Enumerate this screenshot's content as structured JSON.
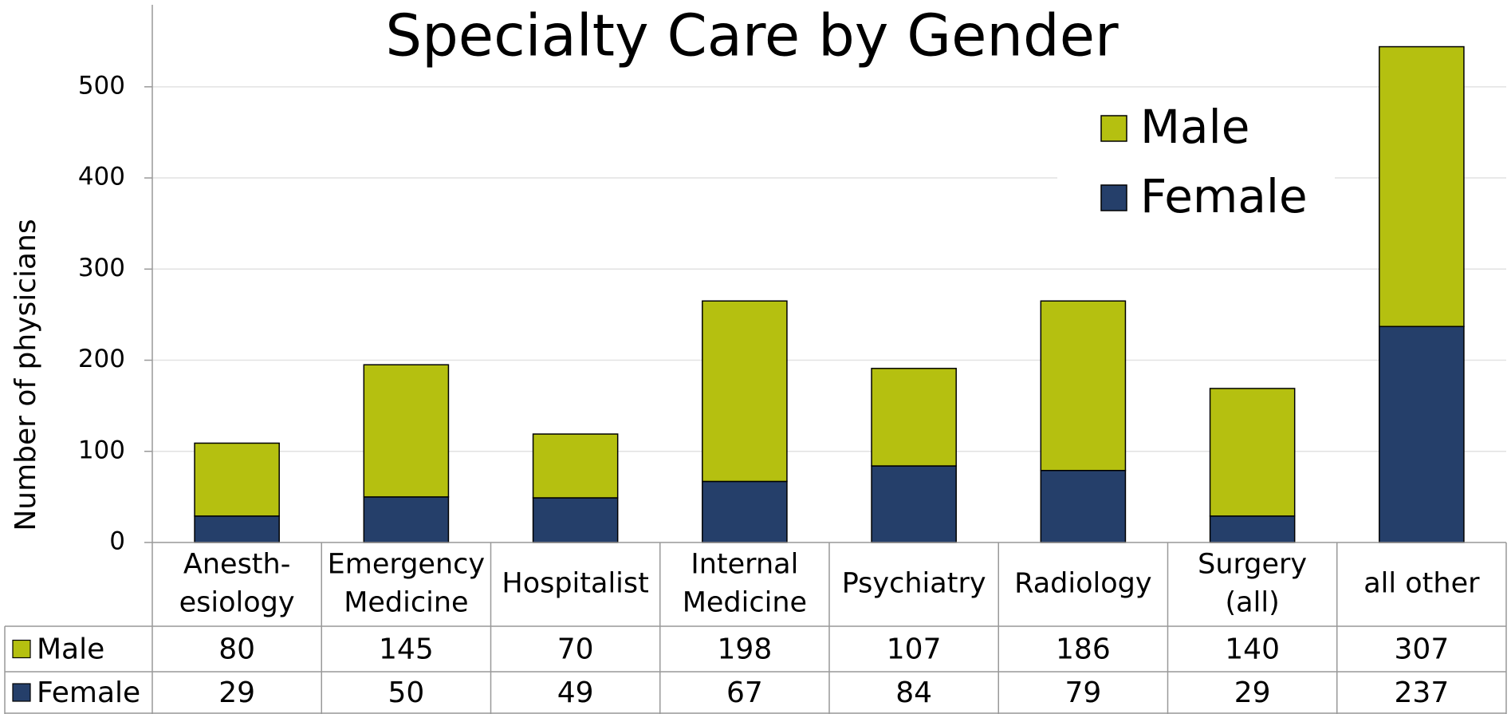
{
  "chart_data": {
    "type": "stacked_bar",
    "title": "Specialty Care by Gender",
    "y_label": "Number of physicians",
    "categories": [
      [
        "Anesth-",
        "esiology"
      ],
      [
        "Emergency",
        "Medicine"
      ],
      [
        "Hospitalist"
      ],
      [
        "Internal",
        "Medicine"
      ],
      [
        "Psychiatry"
      ],
      [
        "Radiology"
      ],
      [
        "Surgery",
        "(all)"
      ],
      [
        "all other"
      ]
    ],
    "series": [
      {
        "name": "Female",
        "color": "#253f6a",
        "values": [
          29,
          50,
          49,
          67,
          84,
          79,
          29,
          237
        ]
      },
      {
        "name": "Male",
        "color": "#b5c010",
        "values": [
          80,
          145,
          70,
          198,
          107,
          186,
          140,
          307
        ]
      }
    ],
    "ylim": [
      0,
      590
    ],
    "yticks": [
      0,
      100,
      200,
      300,
      400,
      500
    ],
    "grid": true,
    "legend": "upper right"
  }
}
